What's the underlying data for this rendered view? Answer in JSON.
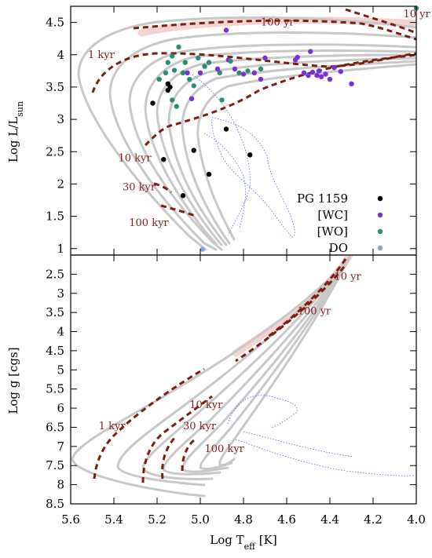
{
  "chart_data": [
    {
      "type": "scatter",
      "panel": "top",
      "xlabel_main": "Log T",
      "xlabel_sub": "eff",
      "xlabel_unit": " [K]",
      "ylabel_main": "Log L/L",
      "ylabel_sub": "sun",
      "xlim": [
        5.6,
        4.0
      ],
      "ylim": [
        0.9,
        4.75
      ],
      "yticks": [
        1,
        1.5,
        2,
        2.5,
        3,
        3.5,
        4,
        4.5
      ],
      "ytick_labels": [
        "1",
        "1.5",
        "2",
        "2.5",
        "3",
        "3.5",
        "4",
        "4.5"
      ],
      "age_labels": [
        {
          "text": "10 yr",
          "x": 4.06,
          "y": 4.58
        },
        {
          "text": "100 yr",
          "x": 4.72,
          "y": 4.45
        },
        {
          "text": "1 kyr",
          "x": 5.52,
          "y": 3.95
        },
        {
          "text": "10 kyr",
          "x": 5.38,
          "y": 2.35
        },
        {
          "text": "30 kyr",
          "x": 5.36,
          "y": 1.9
        },
        {
          "text": "100 kyr",
          "x": 5.33,
          "y": 1.35
        }
      ],
      "series": [
        {
          "name": "PG 1159",
          "color": "#000000",
          "points": [
            [
              5.22,
              3.25
            ],
            [
              5.15,
              3.55
            ],
            [
              5.15,
              3.45
            ],
            [
              5.14,
              3.5
            ],
            [
              5.17,
              2.38
            ],
            [
              5.08,
              1.82
            ],
            [
              5.03,
              2.52
            ],
            [
              4.96,
              2.15
            ],
            [
              4.88,
              2.85
            ],
            [
              4.77,
              2.45
            ]
          ]
        },
        {
          "name": "[WC]",
          "color": "#7b2fd6",
          "points": [
            [
              4.88,
              4.38
            ],
            [
              4.92,
              3.78
            ],
            [
              4.87,
              3.92
            ],
            [
              4.84,
              3.78
            ],
            [
              4.8,
              3.7
            ],
            [
              4.75,
              3.72
            ],
            [
              4.72,
              3.62
            ],
            [
              4.7,
              3.95
            ],
            [
              4.56,
              3.92
            ],
            [
              4.55,
              3.96
            ],
            [
              4.52,
              3.72
            ],
            [
              4.5,
              3.68
            ],
            [
              4.49,
              4.05
            ],
            [
              4.48,
              3.73
            ],
            [
              4.46,
              3.68
            ],
            [
              4.45,
              3.75
            ],
            [
              4.44,
              3.66
            ],
            [
              4.42,
              3.7
            ],
            [
              4.4,
              3.62
            ],
            [
              4.38,
              3.8
            ],
            [
              4.35,
              3.74
            ],
            [
              4.3,
              3.55
            ],
            [
              5.04,
              3.32
            ],
            [
              5.06,
              3.72
            ],
            [
              5.0,
              3.72
            ]
          ]
        },
        {
          "name": "[WO]",
          "color": "#2e8b77",
          "points": [
            [
              5.1,
              4.12
            ],
            [
              5.13,
              3.98
            ],
            [
              5.15,
              3.88
            ],
            [
              5.16,
              3.72
            ],
            [
              5.12,
              3.76
            ],
            [
              5.08,
              3.72
            ],
            [
              5.07,
              3.88
            ],
            [
              5.05,
              3.62
            ],
            [
              5.03,
              3.52
            ],
            [
              5.01,
              3.95
            ],
            [
              4.98,
              3.82
            ],
            [
              4.96,
              3.88
            ],
            [
              4.91,
              3.72
            ],
            [
              4.86,
              3.9
            ],
            [
              4.82,
              3.72
            ],
            [
              4.78,
              3.75
            ],
            [
              4.72,
              3.78
            ],
            [
              5.13,
              3.3
            ],
            [
              5.11,
              3.2
            ],
            [
              4.9,
              3.3
            ],
            [
              5.19,
              3.62
            ],
            [
              4.0,
              4.72
            ]
          ]
        },
        {
          "name": "DO",
          "color": "#7fa6e0",
          "points": [
            [
              4.99,
              0.99
            ]
          ]
        }
      ],
      "legend": {
        "position": "bottom-right",
        "entries": [
          "PG 1159",
          "[WC]",
          "[WO]",
          "DO"
        ]
      }
    },
    {
      "type": "line",
      "panel": "bottom",
      "xlabel": "Log T_eff [K]",
      "ylabel": "Log g [cgs]",
      "xlim": [
        5.6,
        4.0
      ],
      "ylim": [
        8.5,
        2.0
      ],
      "yticks": [
        2.5,
        3,
        3.5,
        4,
        4.5,
        5,
        5.5,
        6,
        6.5,
        7,
        7.5,
        8,
        8.5
      ],
      "ytick_labels": [
        "2.5",
        "3",
        "3.5",
        "4",
        "4.5",
        "5",
        "5.5",
        "6",
        "6.5",
        "7",
        "7.5",
        "8",
        "8.5"
      ],
      "xticks": [
        5.6,
        5.4,
        5.2,
        5.0,
        4.8,
        4.6,
        4.4,
        4.2,
        4.0
      ],
      "xtick_labels": [
        "5.6",
        "5.4",
        "5.2",
        "5.0",
        "4.8",
        "4.6",
        "4.4",
        "4.2",
        "4.0"
      ],
      "age_labels": [
        {
          "text": "10 yr",
          "x": 4.38,
          "y": 2.65
        },
        {
          "text": "100 yr",
          "x": 4.55,
          "y": 3.55
        },
        {
          "text": "1 kyr",
          "x": 5.47,
          "y": 6.55
        },
        {
          "text": "10 kyr",
          "x": 5.05,
          "y": 6.0
        },
        {
          "text": "30 kyr",
          "x": 5.08,
          "y": 6.55
        },
        {
          "text": "100 kyr",
          "x": 4.98,
          "y": 7.15
        }
      ]
    }
  ]
}
